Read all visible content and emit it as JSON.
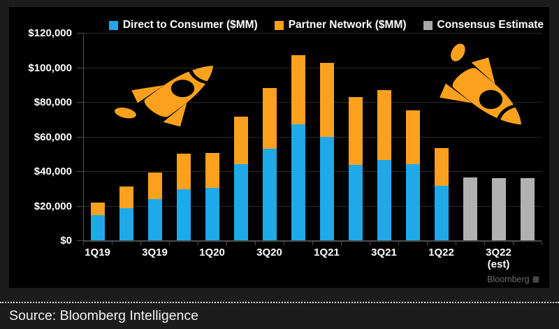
{
  "legend": {
    "items": [
      {
        "label": "Direct to Consumer ($MM)",
        "color": "#1FA9E9"
      },
      {
        "label": "Partner Network ($MM)",
        "color": "#FCA11E"
      },
      {
        "label": "Consensus Estimate",
        "color": "#A8A8A8"
      }
    ]
  },
  "chart_data": {
    "type": "bar",
    "stacked": true,
    "title": "",
    "categories": [
      "1Q19",
      "2Q19",
      "3Q19",
      "4Q19",
      "1Q20",
      "2Q20",
      "3Q20",
      "4Q20",
      "1Q21",
      "2Q21",
      "3Q21",
      "4Q21",
      "1Q22",
      "2Q22",
      "3Q22",
      "4Q22"
    ],
    "series": [
      {
        "name": "Direct to Consumer ($MM)",
        "color": "#1FA9E9",
        "values": [
          14500,
          18500,
          24000,
          29500,
          30500,
          44000,
          53000,
          67000,
          60000,
          43500,
          46500,
          44000,
          31500,
          null,
          null,
          null
        ]
      },
      {
        "name": "Partner Network ($MM)",
        "color": "#FCA11E",
        "values": [
          7500,
          12500,
          15000,
          20500,
          20000,
          27500,
          35000,
          40000,
          42500,
          39500,
          40500,
          31000,
          22000,
          null,
          null,
          null
        ]
      },
      {
        "name": "Consensus Estimate",
        "color": "#B1B1B1",
        "values": [
          null,
          null,
          null,
          null,
          null,
          null,
          null,
          null,
          null,
          null,
          null,
          null,
          null,
          36500,
          36000,
          36000
        ]
      }
    ],
    "ylim": [
      0,
      120000
    ],
    "y_tick_labels": [
      "$120,000",
      "$100,000",
      "$80,000",
      "$60,000",
      "$40,000",
      "$20,000",
      "$0"
    ],
    "x_tick_labels": [
      {
        "label": "1Q19",
        "bar": 0
      },
      {
        "label": "3Q19",
        "bar": 2
      },
      {
        "label": "1Q20",
        "bar": 4
      },
      {
        "label": "3Q20",
        "bar": 6
      },
      {
        "label": "1Q21",
        "bar": 8
      },
      {
        "label": "3Q21",
        "bar": 10
      },
      {
        "label": "1Q22",
        "bar": 12
      },
      {
        "label": "3Q22",
        "sub": "(est)",
        "bar": 14
      }
    ],
    "grid": true,
    "legend_position": "top"
  },
  "decorations": {
    "rocket_color": "#FCA11E"
  },
  "watermark": {
    "text": "Bloomberg"
  },
  "source": {
    "text": "Source: Bloomberg Intelligence"
  }
}
